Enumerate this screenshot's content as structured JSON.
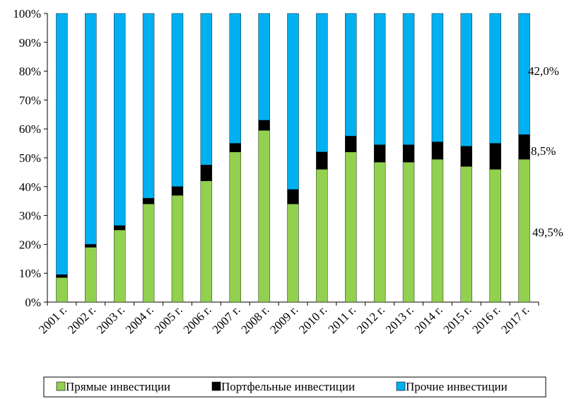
{
  "chart_data": {
    "type": "bar",
    "stacked": true,
    "percent": true,
    "categories": [
      "2001 г.",
      "2002 г.",
      "2003 г.",
      "2004 г.",
      "2005 г.",
      "2006 г.",
      "2007 г.",
      "2008 г.",
      "2009 г.",
      "2010 г.",
      "2011 г.",
      "2012 г.",
      "2013 г.",
      "2014 г.",
      "2015 г.",
      "2016 г.",
      "2017 г."
    ],
    "series": [
      {
        "name": "Прямые инвестиции",
        "color": "#92d050",
        "values": [
          8.5,
          19,
          25,
          34,
          37,
          42,
          52,
          59.5,
          34,
          46,
          52,
          48.5,
          48.5,
          49.5,
          47,
          46,
          49.5
        ]
      },
      {
        "name": "Портфельные инвестиции",
        "color": "#000000",
        "values": [
          1,
          1,
          1.5,
          2,
          3,
          5.5,
          3,
          3.5,
          5,
          6,
          5.5,
          6,
          6,
          6,
          7,
          9,
          8.5
        ]
      },
      {
        "name": "Прочие инвестиции",
        "color": "#00b0f0",
        "values": [
          90.5,
          80,
          73.5,
          64,
          60,
          52.5,
          45,
          37,
          61,
          48,
          42.5,
          45.5,
          45.5,
          44.5,
          46,
          45,
          42
        ]
      }
    ],
    "ylim": [
      0,
      100
    ],
    "yticks": [
      "0%",
      "10%",
      "20%",
      "30%",
      "40%",
      "50%",
      "60%",
      "70%",
      "80%",
      "90%",
      "100%"
    ],
    "annotations": [
      "42,0%",
      "8,5%",
      "49,5%"
    ],
    "legend_position": "bottom",
    "grid": false
  }
}
